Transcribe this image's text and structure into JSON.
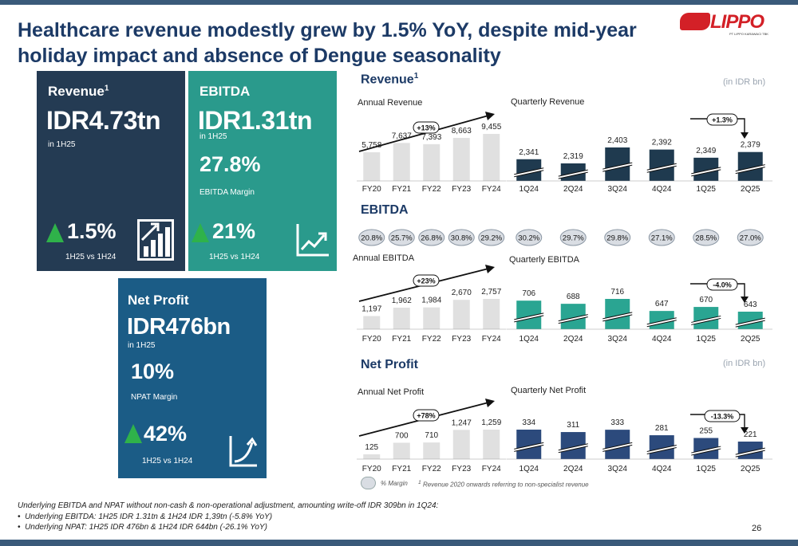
{
  "title": "Healthcare revenue modestly grew by 1.5% YoY, despite mid-year holiday impact and absence of Dengue seasonality",
  "logo": {
    "text": "LIPPO",
    "sub": "PT LIPPO KARAWACI TBK"
  },
  "colors": {
    "revenue_card": "#243b53",
    "ebitda_card": "#2a9a8c",
    "netprofit_card": "#1b5c86",
    "annual_bar": "#e0e0e0",
    "revenue_q": "#1f3a4f",
    "ebitda_q": "#2aa592",
    "netprofit_q": "#2c4a7c",
    "up_arrow": "#2fb24a"
  },
  "cards": {
    "revenue": {
      "label": "Revenue",
      "sup": "1",
      "value": "IDR4.73tn",
      "period": "in 1H25",
      "growth": "1.5%",
      "growth_caption": "1H25 vs 1H24",
      "icon": "bar-chart-up-icon"
    },
    "ebitda": {
      "label": "EBITDA",
      "value": "IDR1.31tn",
      "period": "in 1H25",
      "margin": "27.8%",
      "margin_caption": "EBITDA Margin",
      "growth": "21%",
      "growth_caption": "1H25 vs 1H24",
      "icon": "line-chart-up-icon"
    },
    "netprofit": {
      "label": "Net Profit",
      "value": "IDR476bn",
      "period": "in 1H25",
      "margin": "10%",
      "margin_caption": "NPAT Margin",
      "growth": "42%",
      "growth_caption": "1H25 vs 1H24",
      "icon": "curve-up-icon"
    }
  },
  "sections": {
    "revenue": {
      "title": "Revenue",
      "sup": "1",
      "unit": "(in IDR bn)",
      "annual_label": "Annual Revenue",
      "quarterly_label": "Quarterly Revenue"
    },
    "ebitda": {
      "title": "EBITDA",
      "annual_label": "Annual EBITDA",
      "quarterly_label": "Quarterly EBITDA"
    },
    "netprofit": {
      "title": "Net Profit",
      "unit": "(in IDR bn)",
      "annual_label": "Annual Net Profit",
      "quarterly_label": "Quarterly Net Profit"
    }
  },
  "ebitda_margins": {
    "annual": [
      "20.8%",
      "25.7%",
      "26.8%",
      "30.8%",
      "29.2%"
    ],
    "quarterly": [
      "30.2%",
      "29.7%",
      "29.8%",
      "27.1%",
      "28.5%",
      "27.0%"
    ]
  },
  "chart_data": [
    {
      "type": "bar",
      "title": "Annual Revenue",
      "categories": [
        "FY20",
        "FY21",
        "FY22",
        "FY23",
        "FY24"
      ],
      "values": [
        5758,
        7637,
        7393,
        8663,
        9455
      ],
      "labels": [
        "5,758",
        "7,637",
        "7,393",
        "8,663",
        "9,455"
      ],
      "annotation": "+13%"
    },
    {
      "type": "bar",
      "title": "Quarterly Revenue",
      "categories": [
        "1Q24",
        "2Q24",
        "3Q24",
        "4Q24",
        "1Q25",
        "2Q25"
      ],
      "values": [
        2341,
        2319,
        2403,
        2392,
        2349,
        2379
      ],
      "labels": [
        "2,341",
        "2,319",
        "2,403",
        "2,392",
        "2,349",
        "2,379"
      ],
      "annotation": "+1.3%"
    },
    {
      "type": "bar",
      "title": "Annual EBITDA",
      "categories": [
        "FY20",
        "FY21",
        "FY22",
        "FY23",
        "FY24"
      ],
      "values": [
        1197,
        1962,
        1984,
        2670,
        2757
      ],
      "labels": [
        "1,197",
        "1,962",
        "1,984",
        "2,670",
        "2,757"
      ],
      "annotation": "+23%"
    },
    {
      "type": "bar",
      "title": "Quarterly EBITDA",
      "categories": [
        "1Q24",
        "2Q24",
        "3Q24",
        "4Q24",
        "1Q25",
        "2Q25"
      ],
      "values": [
        706,
        688,
        716,
        647,
        670,
        643
      ],
      "labels": [
        "706",
        "688",
        "716",
        "647",
        "670",
        "643"
      ],
      "annotation": "-4.0%"
    },
    {
      "type": "bar",
      "title": "Annual Net Profit",
      "categories": [
        "FY20",
        "FY21",
        "FY22",
        "FY23",
        "FY24"
      ],
      "values": [
        125,
        700,
        710,
        1247,
        1259
      ],
      "labels": [
        "125",
        "700",
        "710",
        "1,247",
        "1,259"
      ],
      "annotation": "+78%"
    },
    {
      "type": "bar",
      "title": "Quarterly Net Profit",
      "categories": [
        "1Q24",
        "2Q24",
        "3Q24",
        "4Q24",
        "1Q25",
        "2Q25"
      ],
      "values": [
        334,
        311,
        333,
        281,
        255,
        221
      ],
      "labels": [
        "334",
        "311",
        "333",
        "281",
        "255",
        "221"
      ],
      "annotation": "-13.3%"
    }
  ],
  "legend": {
    "margin_label": "% Margin",
    "footnote_sup": "1",
    "footnote": "Revenue 2020 onwards referring to non-specialist revenue"
  },
  "footer": {
    "note": "Underlying  EBITDA and NPAT without non-cash & non-operational adjustment, amounting write-off IDR 309bn in 1Q24:",
    "bullets": [
      "Underlying EBITDA: 1H25 IDR 1.31tn & 1H24 IDR 1,39tn (-5.8% YoY)",
      "Underlying NPAT: 1H25 IDR 476bn & 1H24 IDR 644bn (-26.1% YoY)"
    ],
    "page": "26"
  }
}
